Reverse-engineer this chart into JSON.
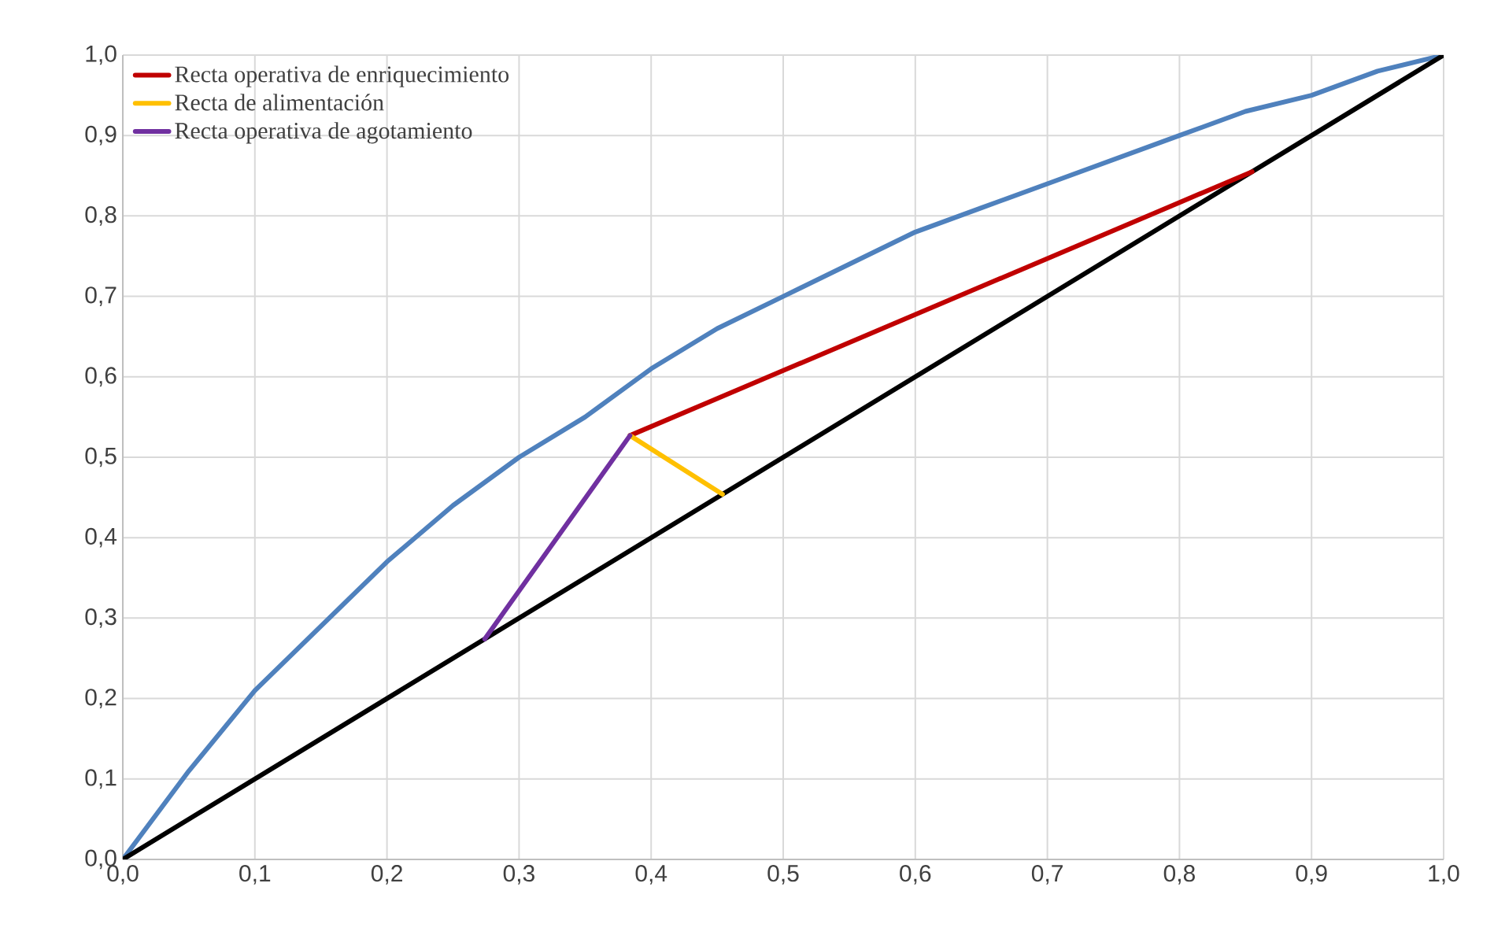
{
  "chart_data": {
    "type": "line",
    "xlim": [
      0,
      1
    ],
    "ylim": [
      0,
      1
    ],
    "xticks": [
      {
        "value": 0,
        "label": "0,0"
      },
      {
        "value": 0.1,
        "label": "0,1"
      },
      {
        "value": 0.2,
        "label": "0,2"
      },
      {
        "value": 0.3,
        "label": "0,3"
      },
      {
        "value": 0.4,
        "label": "0,4"
      },
      {
        "value": 0.5,
        "label": "0,5"
      },
      {
        "value": 0.6,
        "label": "0,6"
      },
      {
        "value": 0.7,
        "label": "0,7"
      },
      {
        "value": 0.8,
        "label": "0,8"
      },
      {
        "value": 0.9,
        "label": "0,9"
      },
      {
        "value": 1,
        "label": "1,0"
      }
    ],
    "yticks": [
      {
        "value": 0,
        "label": "0,0"
      },
      {
        "value": 0.1,
        "label": "0,1"
      },
      {
        "value": 0.2,
        "label": "0,2"
      },
      {
        "value": 0.3,
        "label": "0,3"
      },
      {
        "value": 0.4,
        "label": "0,4"
      },
      {
        "value": 0.5,
        "label": "0,5"
      },
      {
        "value": 0.6,
        "label": "0,6"
      },
      {
        "value": 0.7,
        "label": "0,7"
      },
      {
        "value": 0.8,
        "label": "0,8"
      },
      {
        "value": 0.9,
        "label": "0,9"
      },
      {
        "value": 1,
        "label": "1,0"
      }
    ],
    "grid": true,
    "legend": "top left",
    "marker": "none",
    "line_style": "solid",
    "series": [
      {
        "color": "#4f81bd",
        "x": [
          0,
          0.05,
          0.1,
          0.15,
          0.2,
          0.25,
          0.3,
          0.35,
          0.4,
          0.45,
          0.5,
          0.55,
          0.6,
          0.65,
          0.7,
          0.75,
          0.8,
          0.85,
          0.9,
          0.95,
          1
        ],
        "values": [
          0,
          0.11,
          0.21,
          0.29,
          0.37,
          0.44,
          0.5,
          0.55,
          0.61,
          0.66,
          0.7,
          0.74,
          0.78,
          0.81,
          0.84,
          0.87,
          0.9,
          0.93,
          0.95,
          0.98,
          1
        ]
      },
      {
        "color": "#000000",
        "x": [
          0,
          1
        ],
        "values": [
          0,
          1
        ]
      },
      {
        "name": "Recta operativa de enriquecimiento",
        "color": "#c00000",
        "x": [
          0.384,
          0.855
        ],
        "values": [
          0.527,
          0.855
        ]
      },
      {
        "name": "Recta de alimentación",
        "color": "#ffc000",
        "x": [
          0.384,
          0.454
        ],
        "values": [
          0.527,
          0.454
        ]
      },
      {
        "name": "Recta operativa de agotamiento",
        "color": "#7030a0",
        "x": [
          0.274,
          0.384
        ],
        "values": [
          0.274,
          0.527
        ]
      }
    ]
  }
}
